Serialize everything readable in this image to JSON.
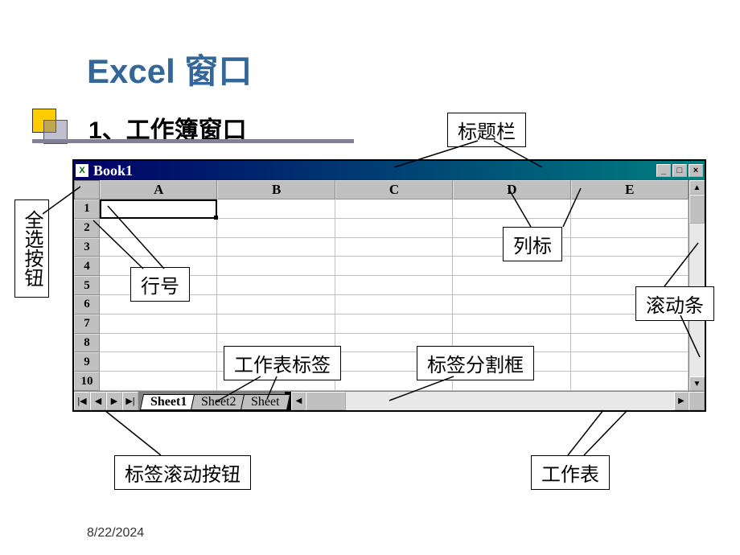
{
  "slide": {
    "title": "Excel 窗口",
    "subtitle_num": "1",
    "subtitle_text": "、工作簿窗口",
    "footer_date": "8/22/2024"
  },
  "excel": {
    "book_title": "Book1",
    "columns": [
      "A",
      "B",
      "C",
      "D",
      "E"
    ],
    "rows": [
      "1",
      "2",
      "3",
      "4",
      "5",
      "6",
      "7",
      "8",
      "9",
      "10"
    ],
    "tabs": [
      "Sheet1",
      "Sheet2",
      "Sheet"
    ],
    "active_tab": 0,
    "window_buttons": {
      "min": "_",
      "max": "□",
      "close": "×"
    },
    "nav_glyphs": {
      "first": "|◀",
      "prev": "◀",
      "next": "▶",
      "last": "▶|"
    },
    "scroll_glyphs": {
      "up": "▲",
      "down": "▼",
      "left": "◀",
      "right": "▶"
    }
  },
  "callouts": {
    "title_bar": "标题栏",
    "select_all": "全选按钮",
    "column_header": "列标",
    "row_header": "行号",
    "scrollbar": "滚动条",
    "sheet_tab": "工作表标签",
    "tab_splitter": "标签分割框",
    "tab_scroll": "标签滚动按钮",
    "worksheet": "工作表"
  },
  "style": {
    "title_color": "#336699",
    "accent_color": "#ffcc00",
    "window_bg": "#c0c0c0",
    "titlebar_gradient": [
      "#000066",
      "#008080"
    ]
  }
}
